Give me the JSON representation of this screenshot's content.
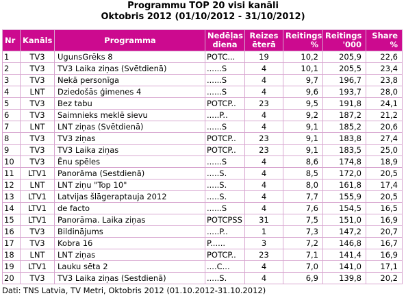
{
  "title_line1": "Programmu TOP 20 visi kanāli",
  "title_line2": "Oktobris 2012 (01/10/2012 - 31/10/2012)",
  "headers": {
    "nr": "Nr",
    "kanals": "Kanāls",
    "programma": "Programma",
    "nedelas_diena_1": "Nedēļas",
    "nedelas_diena_2": "diena",
    "reizes_1": "Reizes",
    "reizes_2": "ēterā",
    "reitings_pct_1": "Reitings",
    "reitings_pct_2": "%",
    "reitings_000_1": "Reitings",
    "reitings_000_2": "'000",
    "share_1": "Share",
    "share_2": "%"
  },
  "rows": [
    {
      "nr": "1",
      "kanals": "TV3",
      "programma": "UgunsGrēks 8",
      "nedelas_diena": "POTC...",
      "reizes": "19",
      "reitings_pct": "10,2",
      "reitings_000": "205,9",
      "share": "22,6"
    },
    {
      "nr": "2",
      "kanals": "TV3",
      "programma": "TV3 Laika ziņas (Svētdienā)",
      "nedelas_diena": "......S",
      "reizes": "4",
      "reitings_pct": "10,1",
      "reitings_000": "205,5",
      "share": "23,4"
    },
    {
      "nr": "3",
      "kanals": "TV3",
      "programma": "Nekā personīga",
      "nedelas_diena": "......S",
      "reizes": "4",
      "reitings_pct": "9,7",
      "reitings_000": "196,7",
      "share": "23,8"
    },
    {
      "nr": "4",
      "kanals": "LNT",
      "programma": "Dziedošās ģimenes 4",
      "nedelas_diena": "......S",
      "reizes": "4",
      "reitings_pct": "9,6",
      "reitings_000": "193,7",
      "share": "28,0"
    },
    {
      "nr": "5",
      "kanals": "TV3",
      "programma": "Bez tabu",
      "nedelas_diena": "POTCP..",
      "reizes": "23",
      "reitings_pct": "9,5",
      "reitings_000": "191,8",
      "share": "24,1"
    },
    {
      "nr": "6",
      "kanals": "TV3",
      "programma": "Saimnieks meklē sievu",
      "nedelas_diena": ".....P..",
      "reizes": "4",
      "reitings_pct": "9,2",
      "reitings_000": "187,2",
      "share": "21,2"
    },
    {
      "nr": "7",
      "kanals": "LNT",
      "programma": "LNT ziņas (Svētdienā)",
      "nedelas_diena": "......S",
      "reizes": "4",
      "reitings_pct": "9,1",
      "reitings_000": "185,2",
      "share": "20,6"
    },
    {
      "nr": "8",
      "kanals": "TV3",
      "programma": "TV3 ziņas",
      "nedelas_diena": "POTCP..",
      "reizes": "23",
      "reitings_pct": "9,1",
      "reitings_000": "183,8",
      "share": "27,4"
    },
    {
      "nr": "9",
      "kanals": "TV3",
      "programma": "TV3 Laika ziņas",
      "nedelas_diena": "POTCP..",
      "reizes": "23",
      "reitings_pct": "9,1",
      "reitings_000": "183,5",
      "share": "25,0"
    },
    {
      "nr": "10",
      "kanals": "TV3",
      "programma": "Ēnu spēles",
      "nedelas_diena": "......S",
      "reizes": "4",
      "reitings_pct": "8,6",
      "reitings_000": "174,8",
      "share": "18,9"
    },
    {
      "nr": "11",
      "kanals": "LTV1",
      "programma": "Panorāma (Sestdienā)",
      "nedelas_diena": ".....S.",
      "reizes": "4",
      "reitings_pct": "8,5",
      "reitings_000": "172,0",
      "share": "20,5"
    },
    {
      "nr": "12",
      "kanals": "LNT",
      "programma": "LNT ziņu \"Top 10\"",
      "nedelas_diena": ".....S.",
      "reizes": "4",
      "reitings_pct": "8,0",
      "reitings_000": "161,8",
      "share": "17,4"
    },
    {
      "nr": "13",
      "kanals": "LTV1",
      "programma": "Latvijas šlāgeraptauja 2012",
      "nedelas_diena": ".....S.",
      "reizes": "4",
      "reitings_pct": "7,7",
      "reitings_000": "155,9",
      "share": "20,5"
    },
    {
      "nr": "14",
      "kanals": "LTV1",
      "programma": "de facto",
      "nedelas_diena": "......S",
      "reizes": "4",
      "reitings_pct": "7,6",
      "reitings_000": "154,5",
      "share": "16,5"
    },
    {
      "nr": "15",
      "kanals": "LTV1",
      "programma": "Panorāma. Laika ziņas",
      "nedelas_diena": "POTCPSS",
      "reizes": "31",
      "reitings_pct": "7,5",
      "reitings_000": "151,0",
      "share": "16,9"
    },
    {
      "nr": "16",
      "kanals": "TV3",
      "programma": "Bildinājums",
      "nedelas_diena": ".....P..",
      "reizes": "1",
      "reitings_pct": "7,3",
      "reitings_000": "147,2",
      "share": "20,7"
    },
    {
      "nr": "17",
      "kanals": "TV3",
      "programma": "Kobra 16",
      "nedelas_diena": "P......",
      "reizes": "3",
      "reitings_pct": "7,2",
      "reitings_000": "146,8",
      "share": "16,7"
    },
    {
      "nr": "18",
      "kanals": "LNT",
      "programma": "LNT ziņas",
      "nedelas_diena": "POTCP..",
      "reizes": "23",
      "reitings_pct": "7,1",
      "reitings_000": "141,4",
      "share": "16,9"
    },
    {
      "nr": "19",
      "kanals": "LTV1",
      "programma": "Lauku sēta 2",
      "nedelas_diena": "....C...",
      "reizes": "4",
      "reitings_pct": "7,0",
      "reitings_000": "141,0",
      "share": "17,1"
    },
    {
      "nr": "20",
      "kanals": "TV3",
      "programma": "TV3 Laika ziņas (Sestdienā)",
      "nedelas_diena": ".....S.",
      "reizes": "4",
      "reitings_pct": "6,9",
      "reitings_000": "139,8",
      "share": "20,2"
    }
  ],
  "source_note": "Dati: TNS Latvia, TV Metri, Oktobris 2012 (01.10.2012-31.10.2012)",
  "colors": {
    "header_bg": "#cc0a8f",
    "header_text": "#ffffff",
    "grid": "#d8a6d0"
  }
}
